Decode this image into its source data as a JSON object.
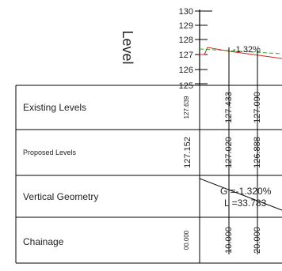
{
  "axis": {
    "label": "Level",
    "ticks": [
      "130",
      "129",
      "128",
      "127",
      "126",
      "125"
    ]
  },
  "grade_label": "-1.32%",
  "rows": {
    "existing": {
      "label": "Existing Levels",
      "values": [
        "127.639",
        "127.433",
        "127.090"
      ]
    },
    "proposed": {
      "label": "Proposed Levels",
      "values": [
        "127.152",
        "127.020",
        "126.888"
      ]
    },
    "geometry": {
      "label": "Vertical Geometry",
      "grade": "G =-1.320%",
      "length": "L =33.783"
    },
    "chainage": {
      "label": "Chainage",
      "values": [
        "00.000",
        "10.000",
        "20.000"
      ]
    }
  },
  "colors": {
    "existing_line": "#e02020",
    "proposed_line": "#2ea02e",
    "grid": "#000000"
  }
}
